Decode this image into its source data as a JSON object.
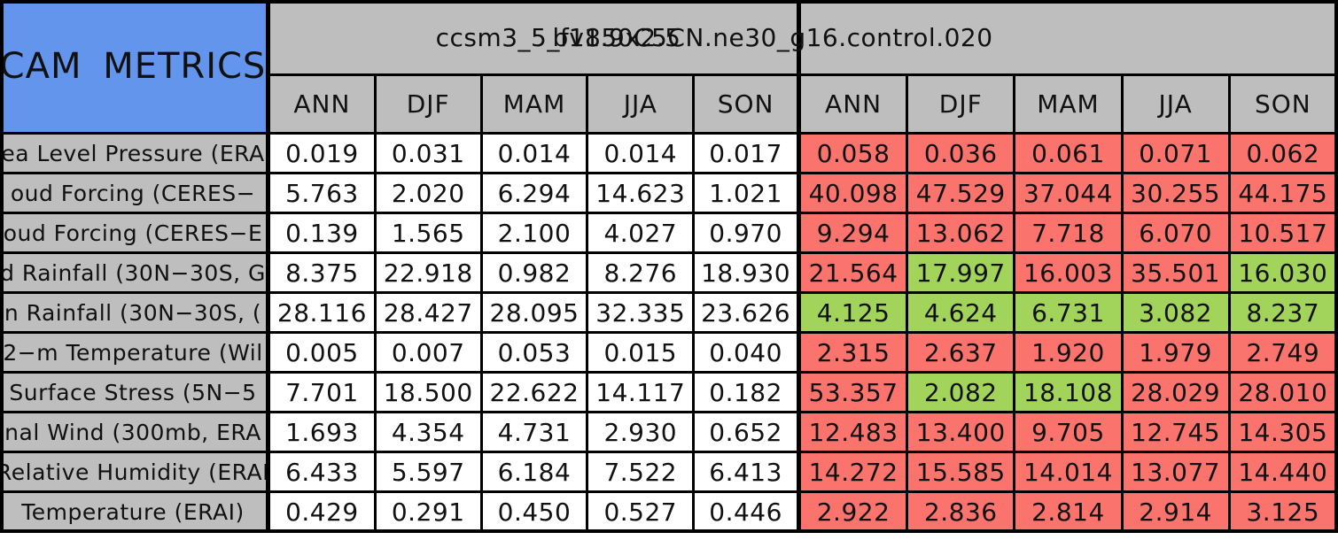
{
  "colors": {
    "table_gray": "#BEBEBE",
    "metrics_blue": "#6495ED",
    "pass_green": "#A2D35B",
    "fail_red": "#FA736C",
    "grid_black": "#000000",
    "cell_white": "#FFFFFF"
  },
  "chart_data": {
    "type": "table",
    "corner_label": "CAM METRICS",
    "title_left": "ccsm3_5_fv1.9x2.5",
    "title_right": "b1850C5CN.ne30_g16.control.020",
    "season_columns": [
      "ANN",
      "DJF",
      "MAM",
      "JJA",
      "SON"
    ],
    "rows": [
      {
        "label": "ea Level Pressure (ERA",
        "model1": [
          "0.019",
          "0.031",
          "0.014",
          "0.014",
          "0.017"
        ],
        "model2": [
          "0.058",
          "0.036",
          "0.061",
          "0.071",
          "0.062"
        ],
        "model2_status": [
          "bad",
          "bad",
          "bad",
          "bad",
          "bad"
        ]
      },
      {
        "label": "oud Forcing (CERES−",
        "model1": [
          "5.763",
          "2.020",
          "6.294",
          "14.623",
          "1.021"
        ],
        "model2": [
          "40.098",
          "47.529",
          "37.044",
          "30.255",
          "44.175"
        ],
        "model2_status": [
          "bad",
          "bad",
          "bad",
          "bad",
          "bad"
        ]
      },
      {
        "label": "oud Forcing (CERES−E",
        "model1": [
          "0.139",
          "1.565",
          "2.100",
          "4.027",
          "0.970"
        ],
        "model2": [
          "9.294",
          "13.062",
          "7.718",
          "6.070",
          "10.517"
        ],
        "model2_status": [
          "bad",
          "bad",
          "bad",
          "bad",
          "bad"
        ]
      },
      {
        "label": "d Rainfall (30N−30S, G",
        "model1": [
          "8.375",
          "22.918",
          "0.982",
          "8.276",
          "18.930"
        ],
        "model2": [
          "21.564",
          "17.997",
          "16.003",
          "35.501",
          "16.030"
        ],
        "model2_status": [
          "bad",
          "good",
          "bad",
          "bad",
          "good"
        ]
      },
      {
        "label": "n Rainfall (30N−30S, (",
        "model1": [
          "28.116",
          "28.427",
          "28.095",
          "32.335",
          "23.626"
        ],
        "model2": [
          "4.125",
          "4.624",
          "6.731",
          "3.082",
          "8.237"
        ],
        "model2_status": [
          "good",
          "good",
          "good",
          "good",
          "good"
        ]
      },
      {
        "label": "2−m Temperature (Wil",
        "model1": [
          "0.005",
          "0.007",
          "0.053",
          "0.015",
          "0.040"
        ],
        "model2": [
          "2.315",
          "2.637",
          "1.920",
          "1.979",
          "2.749"
        ],
        "model2_status": [
          "bad",
          "bad",
          "bad",
          "bad",
          "bad"
        ]
      },
      {
        "label": "Surface Stress (5N−5",
        "model1": [
          "7.701",
          "18.500",
          "22.622",
          "14.117",
          "0.182"
        ],
        "model2": [
          "53.357",
          "2.082",
          "18.108",
          "28.029",
          "28.010"
        ],
        "model2_status": [
          "bad",
          "good",
          "good",
          "bad",
          "bad"
        ]
      },
      {
        "label": "nal Wind (300mb, ERA",
        "model1": [
          "1.693",
          "4.354",
          "4.731",
          "2.930",
          "0.652"
        ],
        "model2": [
          "12.483",
          "13.400",
          "9.705",
          "12.745",
          "14.305"
        ],
        "model2_status": [
          "bad",
          "bad",
          "bad",
          "bad",
          "bad"
        ]
      },
      {
        "label": "Relative Humidity (ERAI",
        "model1": [
          "6.433",
          "5.597",
          "6.184",
          "7.522",
          "6.413"
        ],
        "model2": [
          "14.272",
          "15.585",
          "14.014",
          "13.077",
          "14.440"
        ],
        "model2_status": [
          "bad",
          "bad",
          "bad",
          "bad",
          "bad"
        ]
      },
      {
        "label": "Temperature (ERAI)",
        "model1": [
          "0.429",
          "0.291",
          "0.450",
          "0.527",
          "0.446"
        ],
        "model2": [
          "2.922",
          "2.836",
          "2.814",
          "2.914",
          "3.125"
        ],
        "model2_status": [
          "bad",
          "bad",
          "bad",
          "bad",
          "bad"
        ]
      }
    ]
  }
}
